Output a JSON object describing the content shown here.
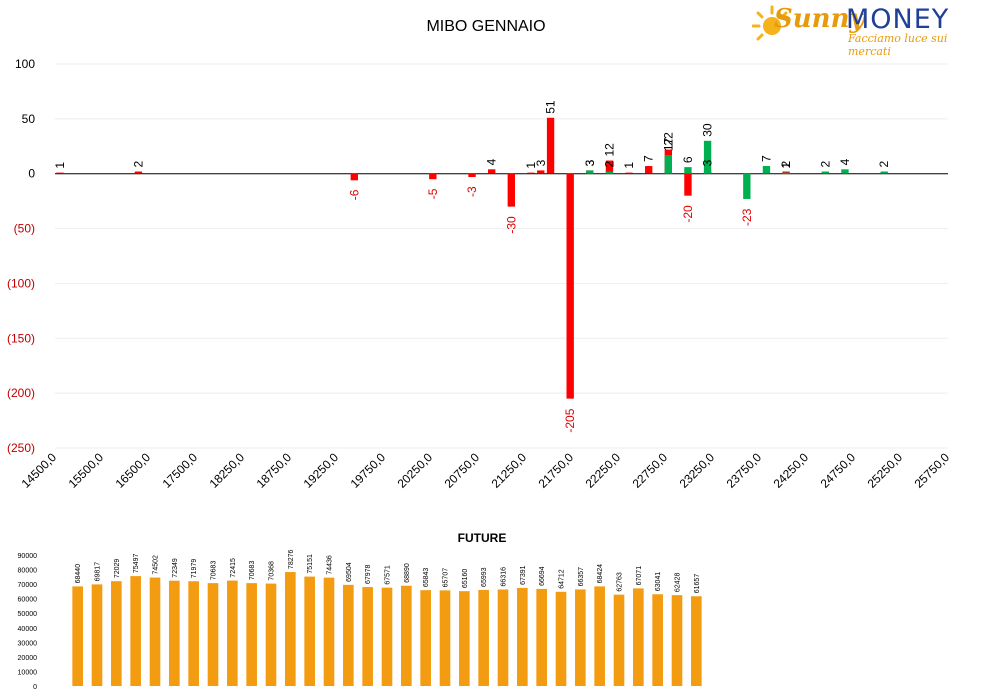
{
  "brand": {
    "name_part1": "Sunny",
    "name_part2": "MONEY",
    "tagline": "Facciamo luce sui mercati",
    "colors": {
      "orange": "#e79a0a",
      "blue": "#1f3f99"
    },
    "icon": "sun-icon"
  },
  "chart_data": [
    {
      "type": "bar",
      "title": "MIBO GENNAIO",
      "ylim": [
        -250,
        100
      ],
      "yticks": [
        100,
        50,
        0,
        -50,
        -100,
        -150,
        -200,
        -250
      ],
      "ytick_labels": [
        "100",
        "50",
        "0",
        "(50)",
        "(100)",
        "(150)",
        "(200)",
        "(250)"
      ],
      "xtick_labels": [
        "14500,0",
        "15500,0",
        "16500,0",
        "17500,0",
        "18250,0",
        "18750,0",
        "19250,0",
        "19750,0",
        "20250,0",
        "20750,0",
        "21250,0",
        "21750,0",
        "22250,0",
        "22750,0",
        "23250,0",
        "23750,0",
        "24250,0",
        "24750,0",
        "25250,0",
        "25750,0"
      ],
      "grid": true,
      "colors": {
        "negative_label": "#e00000",
        "ytick_negative": "#c00000"
      },
      "series": [
        {
          "color": "#ff0000",
          "points": [
            {
              "x": 14500,
              "y": 1
            },
            {
              "x": 15500,
              "y": 2
            },
            {
              "x": 18250,
              "y": -6
            },
            {
              "x": 19250,
              "y": -5
            },
            {
              "x": 19750,
              "y": -3
            },
            {
              "x": 20000,
              "y": 4
            },
            {
              "x": 20250,
              "y": -30
            },
            {
              "x": 20500,
              "y": 1
            },
            {
              "x": 20625,
              "y": 3
            },
            {
              "x": 20750,
              "y": 51
            },
            {
              "x": 21000,
              "y": -205
            },
            {
              "x": 21250,
              "y": 3
            },
            {
              "x": 21500,
              "y": 12
            },
            {
              "x": 21750,
              "y": 1
            },
            {
              "x": 22000,
              "y": 7
            },
            {
              "x": 22250,
              "y": 22
            },
            {
              "x": 22500,
              "y": -20
            },
            {
              "x": 22750,
              "y": 3
            },
            {
              "x": 23750,
              "y": 2
            }
          ]
        },
        {
          "color": "#00b050",
          "points": [
            {
              "x": 21250,
              "y": 3
            },
            {
              "x": 21500,
              "y": 2
            },
            {
              "x": 22250,
              "y": 17
            },
            {
              "x": 22500,
              "y": 6
            },
            {
              "x": 22750,
              "y": 30
            },
            {
              "x": 23250,
              "y": -23
            },
            {
              "x": 23500,
              "y": 7
            },
            {
              "x": 23750,
              "y": 1
            },
            {
              "x": 24250,
              "y": 2
            },
            {
              "x": 24500,
              "y": 4
            },
            {
              "x": 25000,
              "y": 2
            }
          ]
        }
      ]
    },
    {
      "type": "bar",
      "title": "FUTURE",
      "ylim": [
        0,
        90000
      ],
      "yticks": [
        0,
        10000,
        20000,
        30000,
        40000,
        50000,
        60000,
        70000,
        80000,
        90000
      ],
      "grid": false,
      "series": [
        {
          "color": "#f39c12",
          "values": [
            68440,
            69817,
            72029,
            75497,
            74502,
            72349,
            71979,
            70683,
            72415,
            70683,
            70368,
            78276,
            75151,
            74436,
            69504,
            67978,
            67571,
            68890,
            65843,
            65707,
            65160,
            65993,
            66316,
            67391,
            66694,
            64712,
            66357,
            68424,
            62763,
            67071,
            63041,
            62428,
            61657
          ]
        }
      ]
    }
  ]
}
